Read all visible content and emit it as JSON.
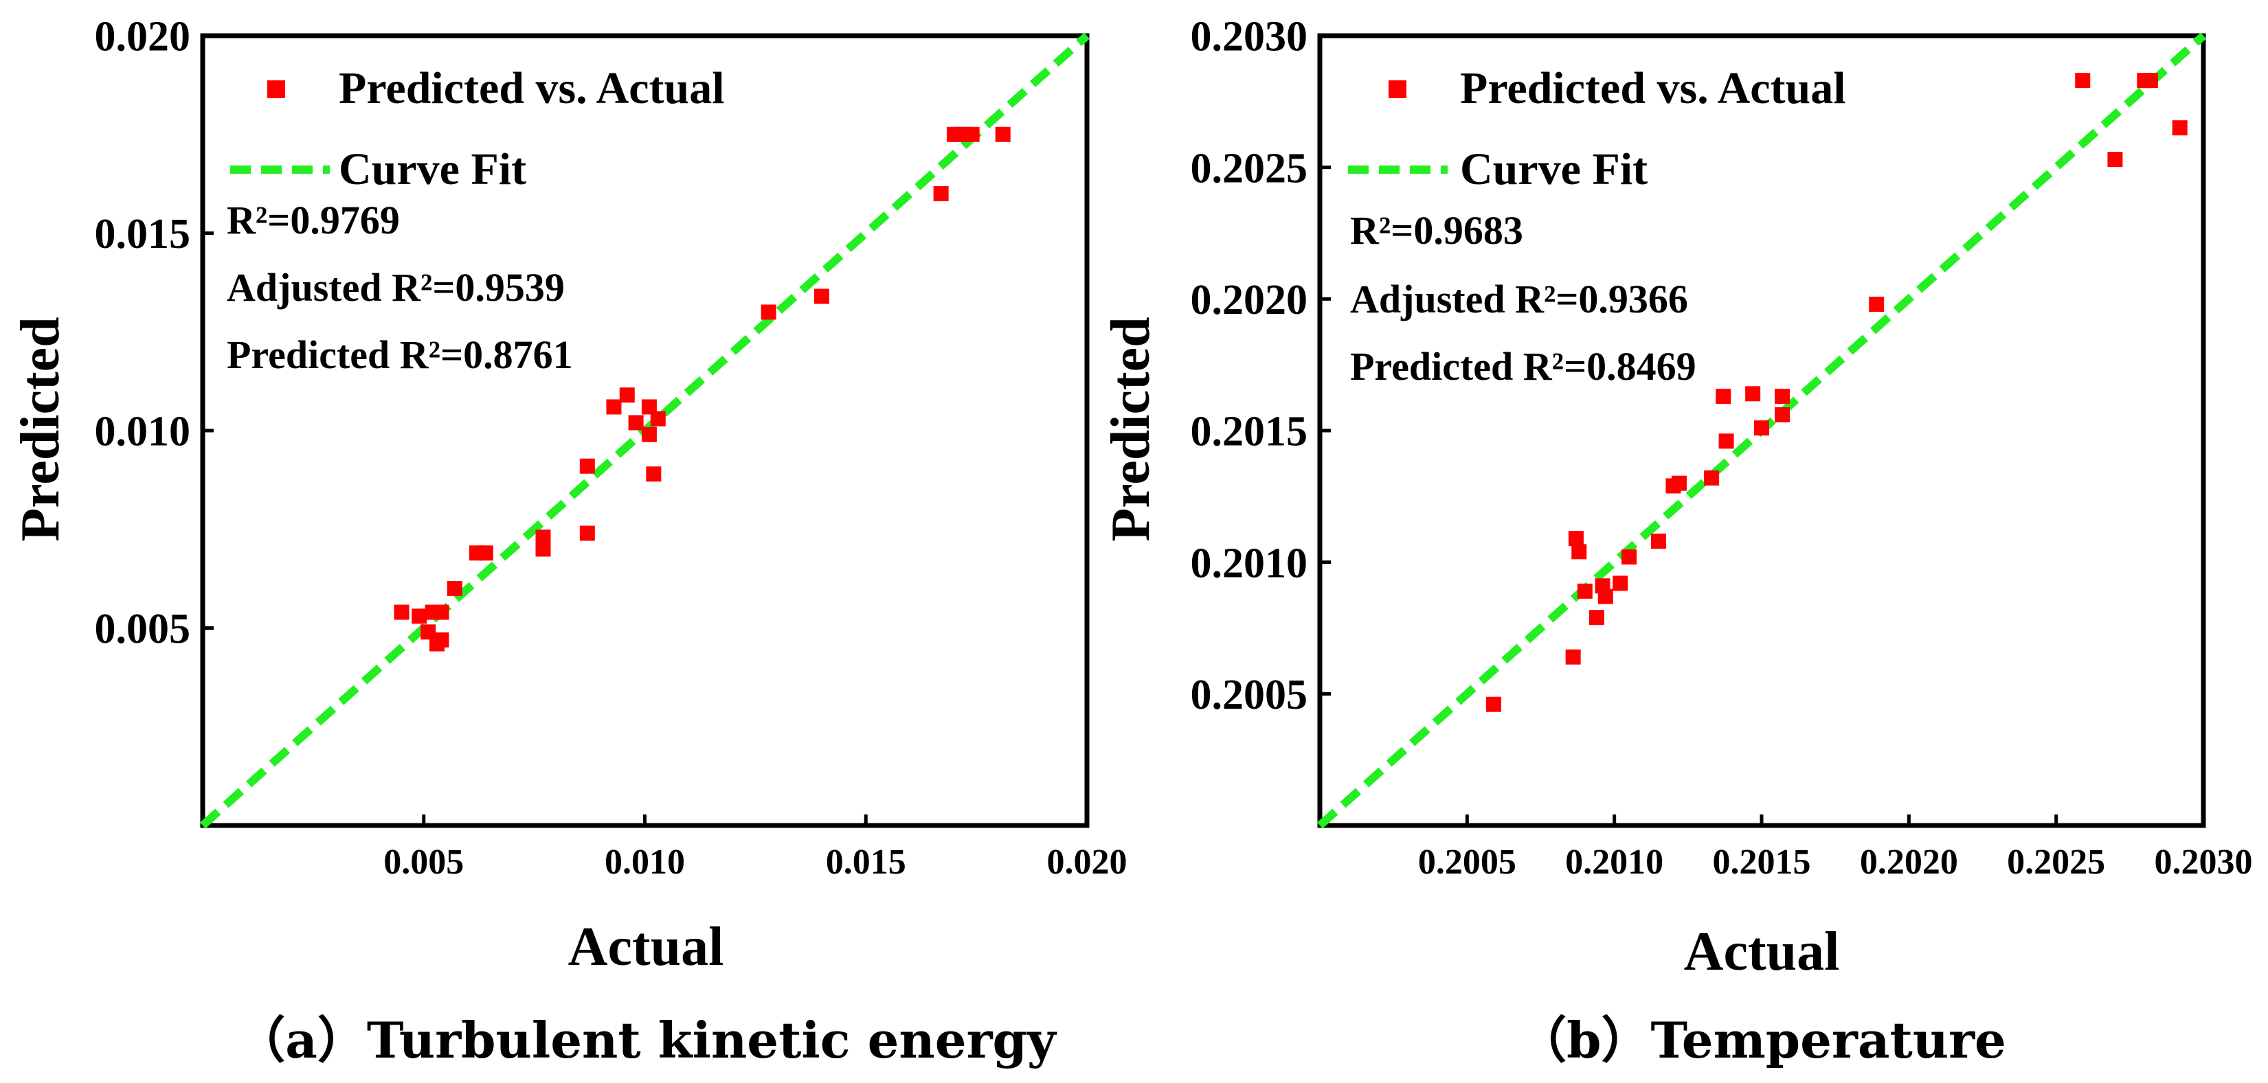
{
  "chart_data": [
    {
      "type": "scatter",
      "caption": "（a）Turbulent kinetic energy",
      "xlabel": "Actual",
      "ylabel": "Predicted",
      "xlim": [
        0.0,
        0.02
      ],
      "ylim": [
        0.0,
        0.02
      ],
      "xticks": [
        0.005,
        0.01,
        0.015,
        0.02
      ],
      "xtick_labels": [
        "0.005",
        "0.010",
        "0.015",
        "0.020"
      ],
      "yticks": [
        0.005,
        0.01,
        0.015,
        0.02
      ],
      "ytick_labels": [
        "0.005",
        "0.010",
        "0.015",
        "0.020"
      ],
      "legend": {
        "points_label": "Predicted vs. Actual",
        "fit_label": "Curve Fit",
        "placement": "top-left"
      },
      "stats": [
        "R²=0.9769",
        "Adjusted R²=0.9539",
        "Predicted R²=0.8761"
      ],
      "fit_line": {
        "x": [
          0.0,
          0.02
        ],
        "y": [
          0.0,
          0.02
        ]
      },
      "colors": {
        "points": "#ff0000",
        "fit": "#22ee22"
      },
      "points": [
        {
          "x": 0.0045,
          "y": 0.0054
        },
        {
          "x": 0.0049,
          "y": 0.0053
        },
        {
          "x": 0.0051,
          "y": 0.0049
        },
        {
          "x": 0.0052,
          "y": 0.0054
        },
        {
          "x": 0.0053,
          "y": 0.0046
        },
        {
          "x": 0.0054,
          "y": 0.0047
        },
        {
          "x": 0.0054,
          "y": 0.0054
        },
        {
          "x": 0.0057,
          "y": 0.006
        },
        {
          "x": 0.0062,
          "y": 0.0069
        },
        {
          "x": 0.0064,
          "y": 0.0069
        },
        {
          "x": 0.0077,
          "y": 0.007
        },
        {
          "x": 0.0077,
          "y": 0.0073
        },
        {
          "x": 0.0087,
          "y": 0.0074
        },
        {
          "x": 0.0087,
          "y": 0.0091
        },
        {
          "x": 0.0093,
          "y": 0.0106
        },
        {
          "x": 0.0096,
          "y": 0.0109
        },
        {
          "x": 0.0098,
          "y": 0.0102
        },
        {
          "x": 0.0101,
          "y": 0.0099
        },
        {
          "x": 0.0101,
          "y": 0.0106
        },
        {
          "x": 0.0102,
          "y": 0.0089
        },
        {
          "x": 0.0103,
          "y": 0.0103
        },
        {
          "x": 0.0128,
          "y": 0.013
        },
        {
          "x": 0.014,
          "y": 0.0134
        },
        {
          "x": 0.0167,
          "y": 0.016
        },
        {
          "x": 0.017,
          "y": 0.0175
        },
        {
          "x": 0.0172,
          "y": 0.0175
        },
        {
          "x": 0.0174,
          "y": 0.0175
        },
        {
          "x": 0.0181,
          "y": 0.0175
        }
      ]
    },
    {
      "type": "scatter",
      "caption": "（b）Temperature",
      "xlabel": "Actual",
      "ylabel": "Predicted",
      "xlim": [
        0.2,
        0.203
      ],
      "ylim": [
        0.2,
        0.203
      ],
      "xticks": [
        0.2005,
        0.201,
        0.2015,
        0.202,
        0.2025,
        0.203
      ],
      "xtick_labels": [
        "0.2005",
        "0.2010",
        "0.2015",
        "0.2020",
        "0.2025",
        "0.2030"
      ],
      "yticks": [
        0.2005,
        0.201,
        0.2015,
        0.202,
        0.2025,
        0.203
      ],
      "ytick_labels": [
        "0.2005",
        "0.2010",
        "0.2015",
        "0.2020",
        "0.2025",
        "0.2030"
      ],
      "legend": {
        "points_label": "Predicted vs. Actual",
        "fit_label": "Curve Fit",
        "placement": "top-left"
      },
      "stats": [
        "R²=0.9683",
        "Adjusted R²=0.9366",
        "Predicted R²=0.8469"
      ],
      "fit_line": {
        "x": [
          0.2,
          0.203
        ],
        "y": [
          0.2,
          0.203
        ]
      },
      "colors": {
        "points": "#ff0000",
        "fit": "#22ee22"
      },
      "points": [
        {
          "x": 0.20059,
          "y": 0.20046
        },
        {
          "x": 0.20086,
          "y": 0.20064
        },
        {
          "x": 0.20087,
          "y": 0.20109
        },
        {
          "x": 0.20088,
          "y": 0.20104
        },
        {
          "x": 0.2009,
          "y": 0.20089
        },
        {
          "x": 0.20094,
          "y": 0.20079
        },
        {
          "x": 0.20096,
          "y": 0.20091
        },
        {
          "x": 0.20097,
          "y": 0.20087
        },
        {
          "x": 0.20102,
          "y": 0.20092
        },
        {
          "x": 0.20105,
          "y": 0.20102
        },
        {
          "x": 0.20115,
          "y": 0.20108
        },
        {
          "x": 0.2012,
          "y": 0.20129
        },
        {
          "x": 0.20122,
          "y": 0.2013
        },
        {
          "x": 0.20133,
          "y": 0.20132
        },
        {
          "x": 0.20137,
          "y": 0.20163
        },
        {
          "x": 0.20138,
          "y": 0.20146
        },
        {
          "x": 0.20147,
          "y": 0.20164
        },
        {
          "x": 0.2015,
          "y": 0.20151
        },
        {
          "x": 0.20157,
          "y": 0.20156
        },
        {
          "x": 0.20157,
          "y": 0.20163
        },
        {
          "x": 0.20189,
          "y": 0.20198
        },
        {
          "x": 0.20259,
          "y": 0.20283
        },
        {
          "x": 0.2027,
          "y": 0.20253
        },
        {
          "x": 0.2028,
          "y": 0.20283
        },
        {
          "x": 0.20282,
          "y": 0.20283
        },
        {
          "x": 0.20292,
          "y": 0.20265
        }
      ]
    }
  ]
}
